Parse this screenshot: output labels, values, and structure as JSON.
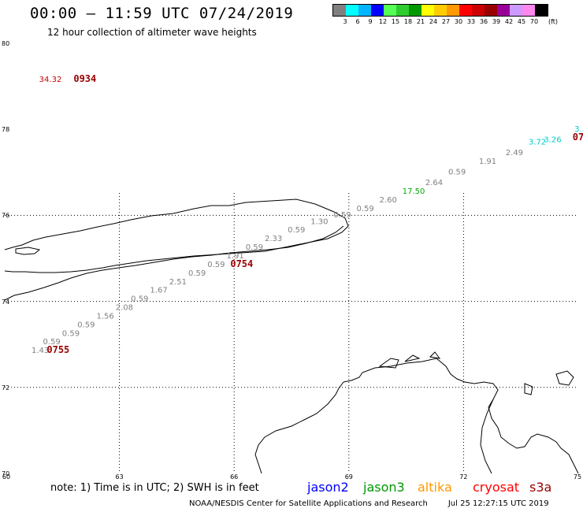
{
  "header": {
    "title": "00:00 – 11:59 UTC 07/24/2019",
    "subtitle": "12 hour collection of altimeter wave heights"
  },
  "legend": {
    "unit": "(ft)",
    "swatches": [
      {
        "color": "#808080",
        "label": "3"
      },
      {
        "color": "#00ffff",
        "label": "6"
      },
      {
        "color": "#00b4ff",
        "label": "9"
      },
      {
        "color": "#0000ff",
        "label": "12"
      },
      {
        "color": "#55ff55",
        "label": "15"
      },
      {
        "color": "#2ecc2e",
        "label": "18"
      },
      {
        "color": "#009900",
        "label": "21"
      },
      {
        "color": "#ffff00",
        "label": "24"
      },
      {
        "color": "#ffcc00",
        "label": "27"
      },
      {
        "color": "#ff9900",
        "label": "30"
      },
      {
        "color": "#ff0000",
        "label": "33"
      },
      {
        "color": "#cc0000",
        "label": "36"
      },
      {
        "color": "#990000",
        "label": "39"
      },
      {
        "color": "#990099",
        "label": "42"
      },
      {
        "color": "#cc99ff",
        "label": "45"
      },
      {
        "color": "#ff88ee",
        "label": "70"
      },
      {
        "color": "#000000",
        "label": ""
      }
    ]
  },
  "map": {
    "lat_range": [
      70,
      80
    ],
    "lon_range": [
      60,
      75
    ],
    "lat_labels": [
      "80",
      "78",
      "76",
      "74",
      "72",
      "70"
    ],
    "lon_labels": [
      "60",
      "63",
      "66",
      "69",
      "72",
      "75"
    ],
    "grid_lons": [
      63,
      66,
      69,
      72
    ],
    "grid_lats": [
      72,
      74,
      76
    ],
    "tracks": [
      {
        "points": [
          {
            "lon": 60.7,
            "lat": 72.8,
            "value": "1.43",
            "color": "#808080"
          },
          {
            "lon": 61.0,
            "lat": 73.0,
            "value": "0.59",
            "color": "#808080"
          },
          {
            "lon": 61.5,
            "lat": 73.2,
            "value": "0.59",
            "color": "#808080"
          },
          {
            "lon": 61.9,
            "lat": 73.4,
            "value": "0.59",
            "color": "#808080"
          },
          {
            "lon": 62.4,
            "lat": 73.6,
            "value": "1.56",
            "color": "#808080"
          },
          {
            "lon": 62.9,
            "lat": 73.8,
            "value": "2.08",
            "color": "#808080"
          },
          {
            "lon": 63.3,
            "lat": 74.0,
            "value": "0.59",
            "color": "#808080"
          },
          {
            "lon": 63.8,
            "lat": 74.2,
            "value": "1.67",
            "color": "#808080"
          },
          {
            "lon": 64.3,
            "lat": 74.4,
            "value": "2.51",
            "color": "#808080"
          },
          {
            "lon": 64.8,
            "lat": 74.6,
            "value": "0.59",
            "color": "#808080"
          },
          {
            "lon": 65.3,
            "lat": 74.8,
            "value": "0.59",
            "color": "#808080"
          },
          {
            "lon": 65.8,
            "lat": 75.0,
            "value": "1.91",
            "color": "#808080"
          },
          {
            "lon": 66.3,
            "lat": 75.2,
            "value": "0.59",
            "color": "#808080"
          },
          {
            "lon": 66.8,
            "lat": 75.4,
            "value": "2.33",
            "color": "#808080"
          },
          {
            "lon": 67.4,
            "lat": 75.6,
            "value": "0.59",
            "color": "#808080"
          },
          {
            "lon": 68.0,
            "lat": 75.8,
            "value": "1.30",
            "color": "#808080"
          },
          {
            "lon": 68.6,
            "lat": 75.95,
            "value": "0.59",
            "color": "#808080"
          },
          {
            "lon": 69.2,
            "lat": 76.1,
            "value": "0.59",
            "color": "#808080"
          },
          {
            "lon": 69.8,
            "lat": 76.3,
            "value": "2.60",
            "color": "#808080"
          },
          {
            "lon": 70.4,
            "lat": 76.5,
            "value": "17.50",
            "color": "#00aa00"
          },
          {
            "lon": 71.0,
            "lat": 76.7,
            "value": "2.64",
            "color": "#808080"
          },
          {
            "lon": 71.6,
            "lat": 76.95,
            "value": "0.59",
            "color": "#808080"
          },
          {
            "lon": 72.4,
            "lat": 77.2,
            "value": "1.91",
            "color": "#808080"
          },
          {
            "lon": 73.1,
            "lat": 77.4,
            "value": "2.49",
            "color": "#808080"
          },
          {
            "lon": 73.7,
            "lat": 77.65,
            "value": "3.72",
            "color": "#00cccc"
          },
          {
            "lon": 74.1,
            "lat": 77.7,
            "value": "3.26",
            "color": "#00cccc"
          },
          {
            "lon": 74.9,
            "lat": 77.95,
            "value": "3.",
            "color": "#00cccc"
          }
        ]
      },
      {
        "points": [
          {
            "lon": 60.9,
            "lat": 79.1,
            "value": "34.32",
            "color": "#cc0000"
          }
        ]
      }
    ],
    "time_labels": [
      {
        "lon": 61.1,
        "lat": 72.8,
        "text": "0755",
        "color": "#990000"
      },
      {
        "lon": 65.9,
        "lat": 74.8,
        "text": "0754",
        "color": "#990000"
      },
      {
        "lon": 61.8,
        "lat": 79.1,
        "text": "0934",
        "color": "#990000"
      },
      {
        "lon": 74.85,
        "lat": 77.75,
        "text": "07",
        "color": "#990000"
      }
    ]
  },
  "footer": {
    "note": "note: 1) Time is in UTC; 2) SWH is in feet",
    "satellites": [
      {
        "name": "jason2",
        "color": "#0000ff",
        "left": 390
      },
      {
        "name": "jason3",
        "color": "#009900",
        "left": 461
      },
      {
        "name": "altika",
        "color": "#ff9900",
        "left": 530
      },
      {
        "name": "cryosat",
        "color": "#ff0000",
        "left": 600
      },
      {
        "name": "s3a",
        "color": "#990000",
        "left": 672
      }
    ],
    "credit": "NOAA/NESDIS Center for Satellite Applications and Research",
    "timestamp": "Jul 25 12:27:15 UTC 2019"
  }
}
